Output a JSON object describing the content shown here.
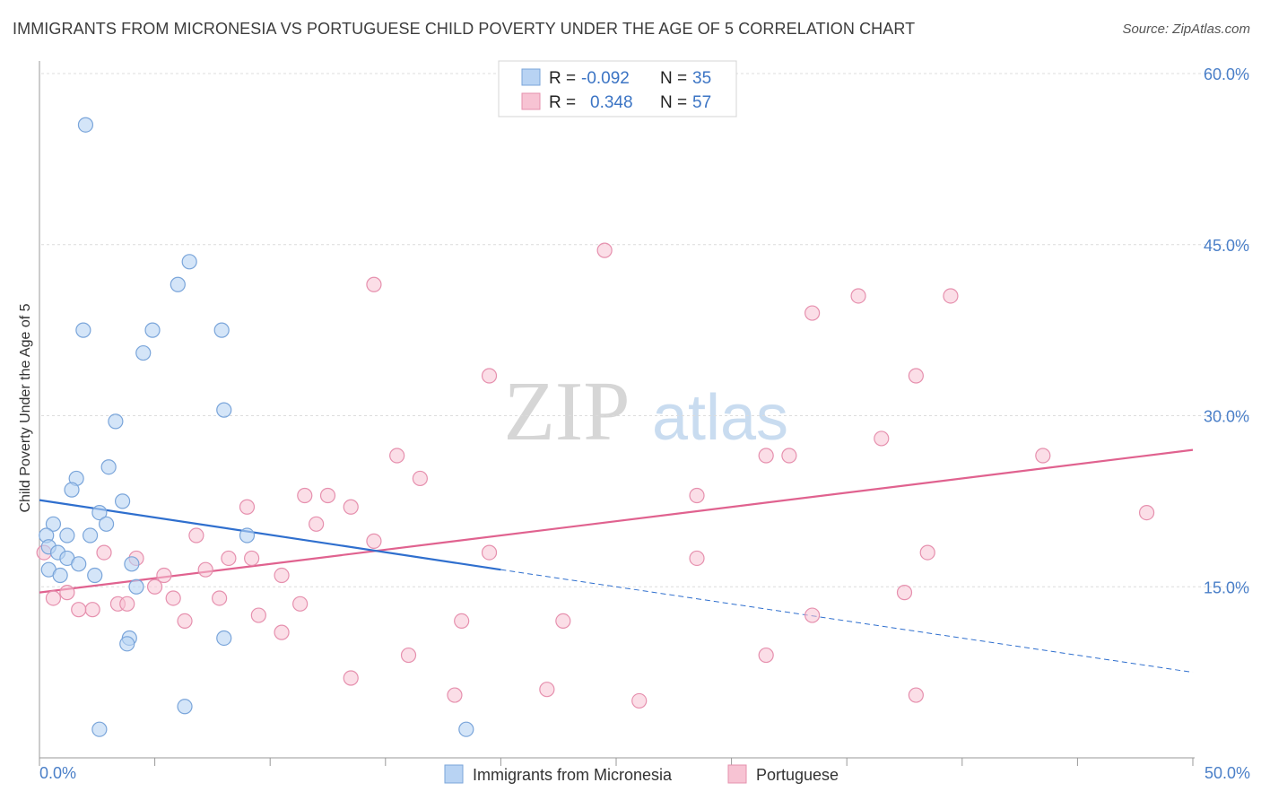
{
  "title": "IMMIGRANTS FROM MICRONESIA VS PORTUGUESE CHILD POVERTY UNDER THE AGE OF 5 CORRELATION CHART",
  "source": "Source: ZipAtlas.com",
  "watermark": {
    "zip": "ZIP",
    "atlas": "atlas"
  },
  "colors": {
    "blue_fill": "#b8d3f3",
    "blue_stroke": "#7aa5da",
    "blue_line": "#2f6fce",
    "pink_fill": "#f7c3d3",
    "pink_stroke": "#e690ae",
    "pink_line": "#e0628f",
    "tick_text": "#4a7fc8"
  },
  "legend": {
    "rows": [
      {
        "r_label": "R =",
        "r_value": "-0.092",
        "n_label": "N =",
        "n_value": "35"
      },
      {
        "r_label": "R =",
        "r_value": "0.348",
        "n_label": "N =",
        "n_value": "57"
      }
    ]
  },
  "chart_data": {
    "type": "scatter",
    "title": "IMMIGRANTS FROM MICRONESIA VS PORTUGUESE CHILD POVERTY UNDER THE AGE OF 5 CORRELATION CHART",
    "xlabel": "",
    "ylabel": "Child Poverty Under the Age of 5",
    "xlim": [
      0,
      50
    ],
    "ylim": [
      0,
      60
    ],
    "x_tick_labels": [
      "0.0%",
      "50.0%"
    ],
    "y_tick_labels": [
      "15.0%",
      "30.0%",
      "45.0%",
      "60.0%"
    ],
    "y_ticks": [
      15,
      30,
      45,
      60
    ],
    "grid": "horizontal dashed",
    "legend_position": "top-center",
    "series": [
      {
        "name": "Immigrants from Micronesia",
        "R": -0.092,
        "N": 35,
        "trend": {
          "x0": 0,
          "y0": 22.6,
          "x1": 20,
          "y1": 16.5,
          "dash_to_x": 50,
          "dash_to_y": 7.5
        },
        "points": [
          [
            2.0,
            55.5
          ],
          [
            6.5,
            43.5
          ],
          [
            6.0,
            41.5
          ],
          [
            1.9,
            37.5
          ],
          [
            4.9,
            37.5
          ],
          [
            7.9,
            37.5
          ],
          [
            4.5,
            35.5
          ],
          [
            8.0,
            30.5
          ],
          [
            3.3,
            29.5
          ],
          [
            3.0,
            25.5
          ],
          [
            1.6,
            24.5
          ],
          [
            1.4,
            23.5
          ],
          [
            3.6,
            22.5
          ],
          [
            2.6,
            21.5
          ],
          [
            2.9,
            20.5
          ],
          [
            0.6,
            20.5
          ],
          [
            1.2,
            19.5
          ],
          [
            2.2,
            19.5
          ],
          [
            9.0,
            19.5
          ],
          [
            0.3,
            19.5
          ],
          [
            0.4,
            18.5
          ],
          [
            0.8,
            18.0
          ],
          [
            1.2,
            17.5
          ],
          [
            1.7,
            17.0
          ],
          [
            4.0,
            17.0
          ],
          [
            0.4,
            16.5
          ],
          [
            0.9,
            16.0
          ],
          [
            2.4,
            16.0
          ],
          [
            4.2,
            15.0
          ],
          [
            3.9,
            10.5
          ],
          [
            3.8,
            10.0
          ],
          [
            8.0,
            10.5
          ],
          [
            6.3,
            4.5
          ],
          [
            2.6,
            2.5
          ],
          [
            18.5,
            2.5
          ]
        ]
      },
      {
        "name": "Portuguese",
        "R": 0.348,
        "N": 57,
        "trend": {
          "x0": 0,
          "y0": 14.5,
          "x1": 50,
          "y1": 27.0
        },
        "points": [
          [
            24.5,
            44.5
          ],
          [
            14.5,
            41.5
          ],
          [
            35.5,
            40.5
          ],
          [
            39.5,
            40.5
          ],
          [
            33.5,
            39.0
          ],
          [
            38.0,
            33.5
          ],
          [
            19.5,
            33.5
          ],
          [
            36.5,
            28.0
          ],
          [
            15.5,
            26.5
          ],
          [
            31.5,
            26.5
          ],
          [
            32.5,
            26.5
          ],
          [
            43.5,
            26.5
          ],
          [
            16.5,
            24.5
          ],
          [
            11.5,
            23.0
          ],
          [
            12.5,
            23.0
          ],
          [
            28.5,
            23.0
          ],
          [
            9.0,
            22.0
          ],
          [
            13.5,
            22.0
          ],
          [
            48.0,
            21.5
          ],
          [
            12.0,
            20.5
          ],
          [
            6.8,
            19.5
          ],
          [
            14.5,
            19.0
          ],
          [
            2.8,
            18.0
          ],
          [
            19.5,
            18.0
          ],
          [
            38.5,
            18.0
          ],
          [
            8.2,
            17.5
          ],
          [
            9.2,
            17.5
          ],
          [
            4.2,
            17.5
          ],
          [
            28.5,
            17.5
          ],
          [
            0.2,
            18.0
          ],
          [
            5.4,
            16.0
          ],
          [
            7.2,
            16.5
          ],
          [
            10.5,
            16.0
          ],
          [
            5.0,
            15.0
          ],
          [
            1.2,
            14.5
          ],
          [
            5.8,
            14.0
          ],
          [
            7.8,
            14.0
          ],
          [
            0.6,
            14.0
          ],
          [
            3.4,
            13.5
          ],
          [
            3.8,
            13.5
          ],
          [
            11.3,
            13.5
          ],
          [
            2.3,
            13.0
          ],
          [
            1.7,
            13.0
          ],
          [
            9.5,
            12.5
          ],
          [
            6.3,
            12.0
          ],
          [
            18.3,
            12.0
          ],
          [
            22.7,
            12.0
          ],
          [
            33.5,
            12.5
          ],
          [
            37.5,
            14.5
          ],
          [
            10.5,
            11.0
          ],
          [
            16.0,
            9.0
          ],
          [
            31.5,
            9.0
          ],
          [
            13.5,
            7.0
          ],
          [
            22.0,
            6.0
          ],
          [
            18.0,
            5.5
          ],
          [
            26.0,
            5.0
          ],
          [
            38.0,
            5.5
          ]
        ]
      }
    ]
  },
  "bottom_legend": {
    "blue_label": "Immigrants from Micronesia",
    "pink_label": "Portuguese"
  }
}
